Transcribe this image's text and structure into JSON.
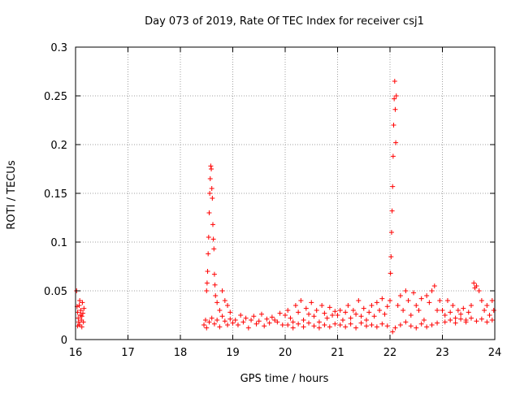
{
  "chart_data": {
    "type": "scatter",
    "title": "Day 073 of 2019, Rate Of TEC Index for receiver csj1",
    "xlabel": "GPS time / hours",
    "ylabel": "ROTI / TECUs",
    "xlim": [
      16,
      24
    ],
    "ylim": [
      0,
      0.3
    ],
    "xticks": [
      16,
      17,
      18,
      19,
      20,
      21,
      22,
      23,
      24
    ],
    "yticks": [
      0,
      0.05,
      0.1,
      0.15,
      0.2,
      0.25,
      0.3
    ],
    "xtick_labels": [
      "16",
      "17",
      "18",
      "19",
      "20",
      "21",
      "22",
      "23",
      "24"
    ],
    "ytick_labels": [
      "0",
      "0.05",
      "0.1",
      "0.15",
      "0.2",
      "0.25",
      "0.3"
    ],
    "grid": true,
    "marker": "+",
    "color": "#ff0000",
    "series": [
      {
        "name": "csj1 ROTI",
        "points": [
          [
            16.02,
            0.05
          ],
          [
            16.03,
            0.034
          ],
          [
            16.04,
            0.028
          ],
          [
            16.05,
            0.022
          ],
          [
            16.06,
            0.018
          ],
          [
            16.07,
            0.035
          ],
          [
            16.08,
            0.015
          ],
          [
            16.09,
            0.025
          ],
          [
            16.1,
            0.03
          ],
          [
            16.11,
            0.02
          ],
          [
            16.12,
            0.013
          ],
          [
            16.13,
            0.038
          ],
          [
            16.14,
            0.027
          ],
          [
            16.15,
            0.018
          ],
          [
            16.16,
            0.032
          ],
          [
            16.04,
            0.014
          ],
          [
            16.08,
            0.04
          ],
          [
            16.12,
            0.024
          ],
          [
            18.48,
            0.02
          ],
          [
            18.5,
            0.05
          ],
          [
            18.51,
            0.058
          ],
          [
            18.52,
            0.07
          ],
          [
            18.53,
            0.088
          ],
          [
            18.54,
            0.105
          ],
          [
            18.55,
            0.13
          ],
          [
            18.56,
            0.15
          ],
          [
            18.57,
            0.165
          ],
          [
            18.58,
            0.178
          ],
          [
            18.59,
            0.175
          ],
          [
            18.6,
            0.155
          ],
          [
            18.61,
            0.145
          ],
          [
            18.62,
            0.118
          ],
          [
            18.63,
            0.103
          ],
          [
            18.64,
            0.093
          ],
          [
            18.65,
            0.067
          ],
          [
            18.66,
            0.056
          ],
          [
            18.67,
            0.045
          ],
          [
            18.7,
            0.038
          ],
          [
            18.75,
            0.03
          ],
          [
            18.8,
            0.05
          ],
          [
            18.85,
            0.04
          ],
          [
            18.9,
            0.035
          ],
          [
            18.95,
            0.028
          ],
          [
            18.45,
            0.015
          ],
          [
            18.5,
            0.012
          ],
          [
            18.55,
            0.018
          ],
          [
            18.6,
            0.022
          ],
          [
            18.65,
            0.016
          ],
          [
            18.7,
            0.02
          ],
          [
            18.75,
            0.013
          ],
          [
            18.8,
            0.024
          ],
          [
            18.85,
            0.019
          ],
          [
            18.9,
            0.015
          ],
          [
            18.95,
            0.021
          ],
          [
            19.0,
            0.017
          ],
          [
            19.05,
            0.02
          ],
          [
            19.1,
            0.015
          ],
          [
            19.15,
            0.025
          ],
          [
            19.2,
            0.018
          ],
          [
            19.25,
            0.022
          ],
          [
            19.3,
            0.012
          ],
          [
            19.35,
            0.02
          ],
          [
            19.4,
            0.024
          ],
          [
            19.45,
            0.016
          ],
          [
            19.5,
            0.019
          ],
          [
            19.55,
            0.026
          ],
          [
            19.6,
            0.014
          ],
          [
            19.65,
            0.021
          ],
          [
            19.7,
            0.017
          ],
          [
            19.75,
            0.023
          ],
          [
            19.8,
            0.02
          ],
          [
            19.85,
            0.018
          ],
          [
            19.9,
            0.027
          ],
          [
            19.95,
            0.015
          ],
          [
            20.0,
            0.025
          ],
          [
            20.05,
            0.03
          ],
          [
            20.1,
            0.022
          ],
          [
            20.15,
            0.018
          ],
          [
            20.2,
            0.035
          ],
          [
            20.25,
            0.028
          ],
          [
            20.3,
            0.04
          ],
          [
            20.35,
            0.02
          ],
          [
            20.4,
            0.032
          ],
          [
            20.45,
            0.026
          ],
          [
            20.5,
            0.038
          ],
          [
            20.55,
            0.024
          ],
          [
            20.6,
            0.03
          ],
          [
            20.65,
            0.018
          ],
          [
            20.7,
            0.035
          ],
          [
            20.75,
            0.027
          ],
          [
            20.8,
            0.022
          ],
          [
            20.85,
            0.033
          ],
          [
            20.9,
            0.025
          ],
          [
            20.95,
            0.029
          ],
          [
            20.05,
            0.015
          ],
          [
            20.15,
            0.012
          ],
          [
            20.25,
            0.016
          ],
          [
            20.35,
            0.013
          ],
          [
            20.45,
            0.017
          ],
          [
            20.55,
            0.014
          ],
          [
            20.65,
            0.012
          ],
          [
            20.75,
            0.015
          ],
          [
            20.85,
            0.013
          ],
          [
            20.95,
            0.016
          ],
          [
            21.0,
            0.025
          ],
          [
            21.05,
            0.03
          ],
          [
            21.1,
            0.02
          ],
          [
            21.15,
            0.028
          ],
          [
            21.2,
            0.035
          ],
          [
            21.25,
            0.022
          ],
          [
            21.3,
            0.03
          ],
          [
            21.35,
            0.026
          ],
          [
            21.4,
            0.04
          ],
          [
            21.45,
            0.024
          ],
          [
            21.5,
            0.032
          ],
          [
            21.55,
            0.02
          ],
          [
            21.6,
            0.028
          ],
          [
            21.65,
            0.035
          ],
          [
            21.7,
            0.024
          ],
          [
            21.75,
            0.038
          ],
          [
            21.8,
            0.03
          ],
          [
            21.85,
            0.042
          ],
          [
            21.9,
            0.026
          ],
          [
            21.95,
            0.034
          ],
          [
            21.05,
            0.015
          ],
          [
            21.15,
            0.013
          ],
          [
            21.25,
            0.016
          ],
          [
            21.35,
            0.012
          ],
          [
            21.45,
            0.017
          ],
          [
            21.55,
            0.014
          ],
          [
            21.65,
            0.015
          ],
          [
            21.75,
            0.013
          ],
          [
            21.85,
            0.016
          ],
          [
            21.95,
            0.014
          ],
          [
            22.0,
            0.04
          ],
          [
            22.01,
            0.068
          ],
          [
            22.02,
            0.085
          ],
          [
            22.03,
            0.11
          ],
          [
            22.04,
            0.132
          ],
          [
            22.05,
            0.157
          ],
          [
            22.06,
            0.188
          ],
          [
            22.07,
            0.22
          ],
          [
            22.08,
            0.247
          ],
          [
            22.09,
            0.265
          ],
          [
            22.1,
            0.236
          ],
          [
            22.11,
            0.202
          ],
          [
            22.12,
            0.25
          ],
          [
            22.05,
            0.008
          ],
          [
            22.1,
            0.012
          ],
          [
            22.15,
            0.035
          ],
          [
            22.2,
            0.045
          ],
          [
            22.25,
            0.03
          ],
          [
            22.3,
            0.05
          ],
          [
            22.35,
            0.04
          ],
          [
            22.4,
            0.025
          ],
          [
            22.45,
            0.048
          ],
          [
            22.5,
            0.035
          ],
          [
            22.55,
            0.03
          ],
          [
            22.6,
            0.042
          ],
          [
            22.65,
            0.02
          ],
          [
            22.7,
            0.045
          ],
          [
            22.75,
            0.038
          ],
          [
            22.8,
            0.05
          ],
          [
            22.85,
            0.055
          ],
          [
            22.9,
            0.03
          ],
          [
            22.95,
            0.04
          ],
          [
            22.2,
            0.015
          ],
          [
            22.3,
            0.018
          ],
          [
            22.4,
            0.014
          ],
          [
            22.5,
            0.012
          ],
          [
            22.6,
            0.016
          ],
          [
            22.7,
            0.013
          ],
          [
            22.8,
            0.015
          ],
          [
            22.9,
            0.017
          ],
          [
            23.0,
            0.03
          ],
          [
            23.05,
            0.025
          ],
          [
            23.1,
            0.04
          ],
          [
            23.15,
            0.028
          ],
          [
            23.2,
            0.035
          ],
          [
            23.25,
            0.022
          ],
          [
            23.3,
            0.03
          ],
          [
            23.35,
            0.026
          ],
          [
            23.4,
            0.032
          ],
          [
            23.45,
            0.02
          ],
          [
            23.5,
            0.028
          ],
          [
            23.55,
            0.035
          ],
          [
            23.6,
            0.058
          ],
          [
            23.62,
            0.053
          ],
          [
            23.65,
            0.055
          ],
          [
            23.7,
            0.05
          ],
          [
            23.75,
            0.04
          ],
          [
            23.8,
            0.03
          ],
          [
            23.85,
            0.035
          ],
          [
            23.9,
            0.025
          ],
          [
            23.95,
            0.04
          ],
          [
            23.98,
            0.03
          ],
          [
            23.05,
            0.018
          ],
          [
            23.15,
            0.02
          ],
          [
            23.25,
            0.017
          ],
          [
            23.35,
            0.021
          ],
          [
            23.45,
            0.018
          ],
          [
            23.55,
            0.022
          ],
          [
            23.65,
            0.019
          ],
          [
            23.75,
            0.021
          ],
          [
            23.85,
            0.018
          ],
          [
            23.95,
            0.02
          ]
        ]
      }
    ]
  }
}
